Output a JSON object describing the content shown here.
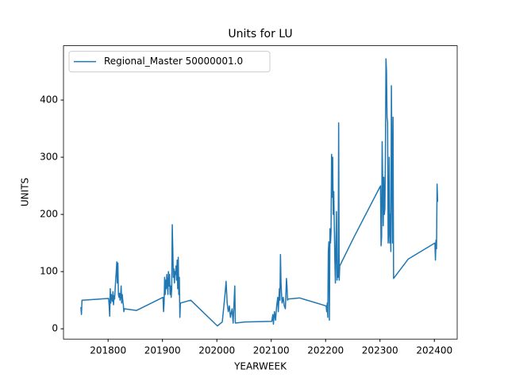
{
  "chart_data": {
    "type": "line",
    "title": "Units for LU",
    "xlabel": "YEARWEEK",
    "ylabel": "UNITS",
    "x": [
      201750,
      201751,
      201752,
      201801,
      201802,
      201803,
      201804,
      201805,
      201806,
      201807,
      201808,
      201809,
      201810,
      201811,
      201812,
      201813,
      201814,
      201815,
      201816,
      201817,
      201818,
      201819,
      201820,
      201821,
      201822,
      201823,
      201824,
      201825,
      201826,
      201827,
      201828,
      201829,
      201830,
      201852,
      201901,
      201902,
      201903,
      201904,
      201905,
      201906,
      201907,
      201908,
      201909,
      201910,
      201911,
      201912,
      201913,
      201914,
      201915,
      201916,
      201917,
      201918,
      201919,
      201920,
      201921,
      201922,
      201923,
      201924,
      201925,
      201926,
      201927,
      201928,
      201929,
      201930,
      201931,
      201932,
      201933,
      201952,
      202001,
      202010,
      202015,
      202017,
      202019,
      202021,
      202023,
      202025,
      202028,
      202030,
      202033,
      202034,
      202052,
      202101,
      202103,
      202104,
      202106,
      202108,
      202110,
      202112,
      202113,
      202115,
      202116,
      202117,
      202118,
      202119,
      202120,
      202122,
      202124,
      202126,
      202128,
      202129,
      202130,
      202131,
      202152,
      202201,
      202202,
      202203,
      202204,
      202205,
      202206,
      202207,
      202208,
      202209,
      202210,
      202211,
      202212,
      202213,
      202214,
      202215,
      202216,
      202217,
      202218,
      202219,
      202220,
      202221,
      202222,
      202223,
      202224,
      202225,
      202226,
      202252,
      202301,
      202302,
      202303,
      202304,
      202305,
      202306,
      202307,
      202308,
      202309,
      202310,
      202311,
      202312,
      202313,
      202314,
      202315,
      202316,
      202317,
      202318,
      202319,
      202320,
      202321,
      202322,
      202323,
      202324,
      202325,
      202352,
      202401,
      202402,
      202403,
      202404,
      202405,
      202406
    ],
    "series": [
      {
        "name": "Regional_Master 50000001.0",
        "color": "#1f77b4",
        "values": [
          38,
          25,
          50,
          53,
          40,
          22,
          70,
          45,
          60,
          55,
          48,
          65,
          42,
          58,
          52,
          70,
          85,
          100,
          117,
          80,
          115,
          60,
          55,
          62,
          50,
          58,
          75,
          45,
          60,
          50,
          42,
          30,
          35,
          32,
          55,
          30,
          45,
          90,
          60,
          85,
          70,
          95,
          80,
          60,
          100,
          75,
          95,
          60,
          75,
          55,
          70,
          182,
          140,
          90,
          105,
          80,
          100,
          95,
          110,
          85,
          120,
          70,
          125,
          60,
          90,
          20,
          45,
          50,
          5,
          12,
          60,
          83,
          45,
          30,
          40,
          20,
          35,
          10,
          75,
          10,
          12,
          13,
          25,
          8,
          30,
          15,
          40,
          55,
          30,
          70,
          50,
          130,
          80,
          60,
          45,
          55,
          40,
          35,
          88,
          75,
          50,
          52,
          54,
          40,
          30,
          45,
          20,
          135,
          152,
          15,
          175,
          150,
          170,
          305,
          230,
          300,
          200,
          240,
          180,
          120,
          80,
          150,
          205,
          85,
          100,
          90,
          360,
          85,
          110,
          160,
          250,
          145,
          160,
          327,
          250,
          180,
          265,
          200,
          210,
          305,
          472,
          450,
          370,
          360,
          150,
          170,
          300,
          150,
          200,
          135,
          425,
          300,
          150,
          370,
          88,
          122,
          150,
          120,
          155,
          140,
          253,
          222
        ]
      }
    ],
    "xlim": [
      201718,
      202442
    ],
    "ylim": [
      -18,
      495
    ],
    "xticks": [
      201800,
      201900,
      202000,
      202100,
      202200,
      202300,
      202400
    ],
    "yticks": [
      0,
      100,
      200,
      300,
      400
    ],
    "legend": "upper left"
  }
}
